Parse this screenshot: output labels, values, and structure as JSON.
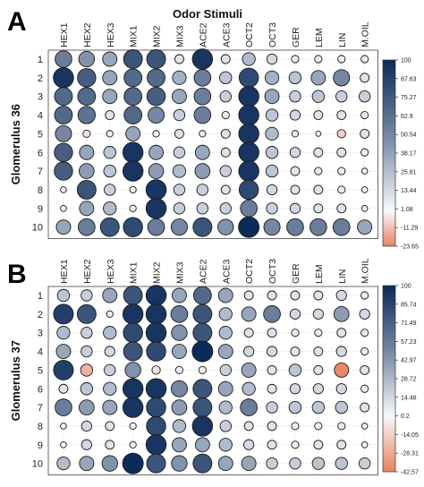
{
  "header": {
    "title": "Odor Stimuli"
  },
  "chart_data": [
    {
      "type": "dot-matrix",
      "panel_letter": "A",
      "ylabel": "Glomerulus 36",
      "columns": [
        "HEX1",
        "HEX2",
        "HEX3",
        "MIX1",
        "MIX2",
        "MIX3",
        "ACE2",
        "ACE3",
        "OCT2",
        "OCT3",
        "GER",
        "LEM",
        "LIN",
        "M.OIL"
      ],
      "rows": [
        "1",
        "2",
        "3",
        "4",
        "5",
        "6",
        "7",
        "8",
        "9",
        "10"
      ],
      "values": [
        [
          60,
          50,
          40,
          80,
          80,
          10,
          95,
          10,
          30,
          15,
          5,
          5,
          5,
          5
        ],
        [
          95,
          75,
          40,
          70,
          70,
          35,
          60,
          25,
          85,
          35,
          25,
          40,
          55,
          10
        ],
        [
          70,
          70,
          40,
          70,
          75,
          40,
          60,
          20,
          95,
          40,
          20,
          25,
          20,
          20
        ],
        [
          70,
          65,
          10,
          70,
          55,
          20,
          60,
          5,
          95,
          25,
          15,
          10,
          10,
          5
        ],
        [
          55,
          -5,
          3,
          40,
          3,
          10,
          3,
          10,
          95,
          30,
          3,
          1,
          -8,
          10
        ],
        [
          75,
          40,
          25,
          95,
          40,
          20,
          40,
          10,
          95,
          25,
          15,
          10,
          10,
          5
        ],
        [
          75,
          45,
          25,
          95,
          45,
          30,
          45,
          20,
          95,
          25,
          10,
          5,
          5,
          2
        ],
        [
          2,
          80,
          20,
          3,
          95,
          20,
          20,
          10,
          85,
          15,
          10,
          10,
          5,
          2
        ],
        [
          2,
          40,
          30,
          3,
          95,
          20,
          20,
          20,
          60,
          20,
          15,
          10,
          10,
          2
        ],
        [
          40,
          60,
          80,
          85,
          60,
          55,
          80,
          50,
          100,
          55,
          60,
          60,
          60,
          40
        ]
      ],
      "colorbar": {
        "ticks": [
          "100",
          "87.63",
          "75.27",
          "62.9",
          "50.54",
          "38.17",
          "25.81",
          "13.44",
          "1.08",
          "-11.29",
          "-23.65"
        ],
        "min": -23.65,
        "max": 100
      },
      "size_range": [
        -23.65,
        100
      ],
      "colors": {
        "negative": "#e8825f",
        "zero": "#f6f8fb",
        "positive": "#0c2b5a"
      }
    },
    {
      "type": "dot-matrix",
      "panel_letter": "B",
      "ylabel": "Glomerulus 37",
      "columns": [
        "HEX1",
        "HEX2",
        "HEX3",
        "MIX1",
        "MIX2",
        "MIX3",
        "ACE2",
        "ACE3",
        "OCT2",
        "OCT3",
        "GER",
        "LEM",
        "LIN",
        "M.OIL"
      ],
      "rows": [
        "1",
        "2",
        "3",
        "4",
        "5",
        "6",
        "7",
        "8",
        "9",
        "10"
      ],
      "values": [
        [
          25,
          20,
          40,
          80,
          95,
          40,
          70,
          40,
          10,
          10,
          10,
          10,
          15,
          5
        ],
        [
          90,
          80,
          3,
          95,
          95,
          60,
          80,
          30,
          40,
          60,
          15,
          15,
          45,
          15
        ],
        [
          30,
          20,
          30,
          85,
          95,
          50,
          80,
          30,
          10,
          10,
          5,
          5,
          10,
          5
        ],
        [
          40,
          20,
          15,
          80,
          85,
          40,
          100,
          40,
          15,
          15,
          10,
          10,
          15,
          5
        ],
        [
          90,
          -25,
          20,
          50,
          -8,
          5,
          -5,
          20,
          40,
          10,
          25,
          10,
          -40,
          10
        ],
        [
          10,
          25,
          30,
          95,
          95,
          55,
          80,
          40,
          30,
          10,
          15,
          15,
          15,
          5
        ],
        [
          60,
          45,
          40,
          95,
          85,
          45,
          80,
          30,
          60,
          20,
          25,
          25,
          25,
          10
        ],
        [
          2,
          15,
          10,
          3,
          85,
          30,
          95,
          20,
          10,
          10,
          5,
          5,
          5,
          2
        ],
        [
          2,
          15,
          10,
          3,
          95,
          40,
          40,
          30,
          15,
          10,
          5,
          10,
          10,
          2
        ],
        [
          30,
          40,
          50,
          100,
          80,
          50,
          80,
          40,
          40,
          20,
          20,
          25,
          25,
          20
        ]
      ],
      "colorbar": {
        "ticks": [
          "100",
          "85.74",
          "71.49",
          "57.23",
          "42.97",
          "28.72",
          "14.46",
          "0.2",
          "-14.05",
          "-28.31",
          "-42.57"
        ],
        "min": -42.57,
        "max": 100
      },
      "size_range": [
        -42.57,
        100
      ],
      "colors": {
        "negative": "#e8825f",
        "zero": "#f6f8fb",
        "positive": "#0c2b5a"
      }
    }
  ]
}
